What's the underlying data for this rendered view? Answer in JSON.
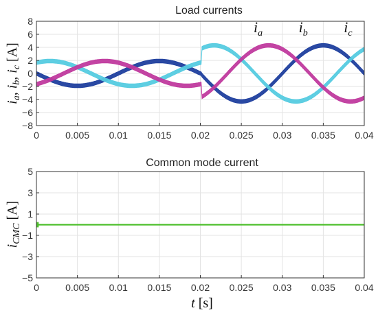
{
  "chart_data": [
    {
      "type": "line",
      "title": "Load currents",
      "ylabel": {
        "parts": [
          {
            "text": "i",
            "sub": "a"
          },
          {
            "text": ", ",
            "sub": ""
          },
          {
            "text": "i",
            "sub": "b"
          },
          {
            "text": ", ",
            "sub": ""
          },
          {
            "text": "i",
            "sub": "c"
          }
        ],
        "unit": " [A]"
      },
      "xlim": [
        0,
        0.04
      ],
      "ylim": [
        -8,
        8
      ],
      "xticks": [
        0,
        0.005,
        0.01,
        0.015,
        0.02,
        0.025,
        0.03,
        0.035,
        0.04
      ],
      "xtick_labels": [
        "0",
        "0.005",
        "0.01",
        "0.015",
        "0.02",
        "0.025",
        "0.03",
        "0.035",
        "0.04"
      ],
      "yticks": [
        -8,
        -6,
        -4,
        -2,
        0,
        2,
        4,
        6,
        8
      ],
      "ytick_labels": [
        "−8",
        "−6",
        "−4",
        "−2",
        "0",
        "2",
        "4",
        "6",
        "8"
      ],
      "grid": true,
      "frequency_hz": 50,
      "ripple_band_A": 0.6,
      "step_time_s": 0.0202,
      "series": [
        {
          "name_parts": [
            "i",
            "a"
          ],
          "color": "#1f3f9e",
          "amp_before": 1.9,
          "amp_after": 4.3,
          "phase_deg": 180,
          "label_at": {
            "x": 0.0265,
            "y": 6.3
          }
        },
        {
          "name_parts": [
            "i",
            "b"
          ],
          "color": "#55cbe0",
          "amp_before": 1.9,
          "amp_after": 4.3,
          "phase_deg": 60,
          "label_at": {
            "x": 0.032,
            "y": 6.3
          }
        },
        {
          "name_parts": [
            "i",
            "c"
          ],
          "color": "#c03a9e",
          "amp_before": 1.9,
          "amp_after": 4.3,
          "phase_deg": -60,
          "label_at": {
            "x": 0.0375,
            "y": 6.3
          }
        }
      ]
    },
    {
      "type": "line",
      "title": "Common mode current",
      "ylabel": {
        "parts": [
          {
            "text": "i",
            "sub": "CMC"
          }
        ],
        "unit": " [A]"
      },
      "xlabel": {
        "var": "t",
        "unit": " [s]"
      },
      "xlim": [
        0,
        0.04
      ],
      "ylim": [
        -5,
        5
      ],
      "xticks": [
        0,
        0.005,
        0.01,
        0.015,
        0.02,
        0.025,
        0.03,
        0.035,
        0.04
      ],
      "xtick_labels": [
        "0",
        "0.005",
        "0.01",
        "0.015",
        "0.02",
        "0.025",
        "0.03",
        "0.035",
        "0.04"
      ],
      "yticks": [
        -5,
        -3,
        -1,
        1,
        3,
        5
      ],
      "ytick_labels": [
        "−5",
        "−3",
        "−1",
        "1",
        "3",
        "5"
      ],
      "grid": true,
      "series": [
        {
          "color": "#4cbf2a",
          "value": 0,
          "initial_spike": 0.25
        }
      ]
    }
  ]
}
